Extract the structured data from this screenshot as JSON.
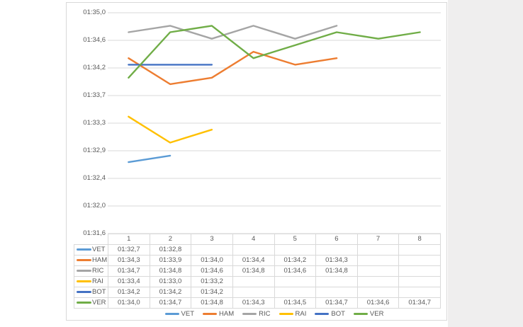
{
  "colors": {
    "grid": "#d9d9d9",
    "text": "#595959",
    "chart_border": "#d9d9d9",
    "side_panel": "#efeeee",
    "plot_background": "#ffffff"
  },
  "chart_data": {
    "type": "line",
    "title": "",
    "xlabel": "",
    "ylabel": "",
    "grid": true,
    "legend_position": "bottom",
    "data_table_shown": true,
    "x_categories": [
      "1",
      "2",
      "3",
      "4",
      "5",
      "6",
      "7",
      "8"
    ],
    "y_axis": {
      "tick_labels": [
        "01:35,0",
        "01:34,6",
        "01:34,2",
        "01:33,7",
        "01:33,3",
        "01:32,9",
        "01:32,4",
        "01:32,0",
        "01:31,6"
      ],
      "min_seconds": 91.6,
      "max_seconds": 95.0
    },
    "series": [
      {
        "name": "VET",
        "color": "#5B9BD5",
        "values_seconds": [
          92.7,
          92.8,
          null,
          null,
          null,
          null,
          null,
          null
        ],
        "display_labels": [
          "01:32,7",
          "01:32,8",
          "",
          "",
          "",
          "",
          "",
          ""
        ]
      },
      {
        "name": "HAM",
        "color": "#ED7D31",
        "values_seconds": [
          94.3,
          93.9,
          94.0,
          94.4,
          94.2,
          94.3,
          null,
          null
        ],
        "display_labels": [
          "01:34,3",
          "01:33,9",
          "01:34,0",
          "01:34,4",
          "01:34,2",
          "01:34,3",
          "",
          ""
        ]
      },
      {
        "name": "RIC",
        "color": "#A5A5A5",
        "values_seconds": [
          94.7,
          94.8,
          94.6,
          94.8,
          94.6,
          94.8,
          null,
          null
        ],
        "display_labels": [
          "01:34,7",
          "01:34,8",
          "01:34,6",
          "01:34,8",
          "01:34,6",
          "01:34,8",
          "",
          ""
        ]
      },
      {
        "name": "RAI",
        "color": "#FFC000",
        "values_seconds": [
          93.4,
          93.0,
          93.2,
          null,
          null,
          null,
          null,
          null
        ],
        "display_labels": [
          "01:33,4",
          "01:33,0",
          "01:33,2",
          "",
          "",
          "",
          "",
          ""
        ]
      },
      {
        "name": "BOT",
        "color": "#4472C4",
        "values_seconds": [
          94.2,
          94.2,
          94.2,
          null,
          null,
          null,
          null,
          null
        ],
        "display_labels": [
          "01:34,2",
          "01:34,2",
          "01:34,2",
          "",
          "",
          "",
          "",
          ""
        ]
      },
      {
        "name": "VER",
        "color": "#70AD47",
        "values_seconds": [
          94.0,
          94.7,
          94.8,
          94.3,
          94.5,
          94.7,
          94.6,
          94.7
        ],
        "display_labels": [
          "01:34,0",
          "01:34,7",
          "01:34,8",
          "01:34,3",
          "01:34,5",
          "01:34,7",
          "01:34,6",
          "01:34,7"
        ]
      }
    ]
  }
}
